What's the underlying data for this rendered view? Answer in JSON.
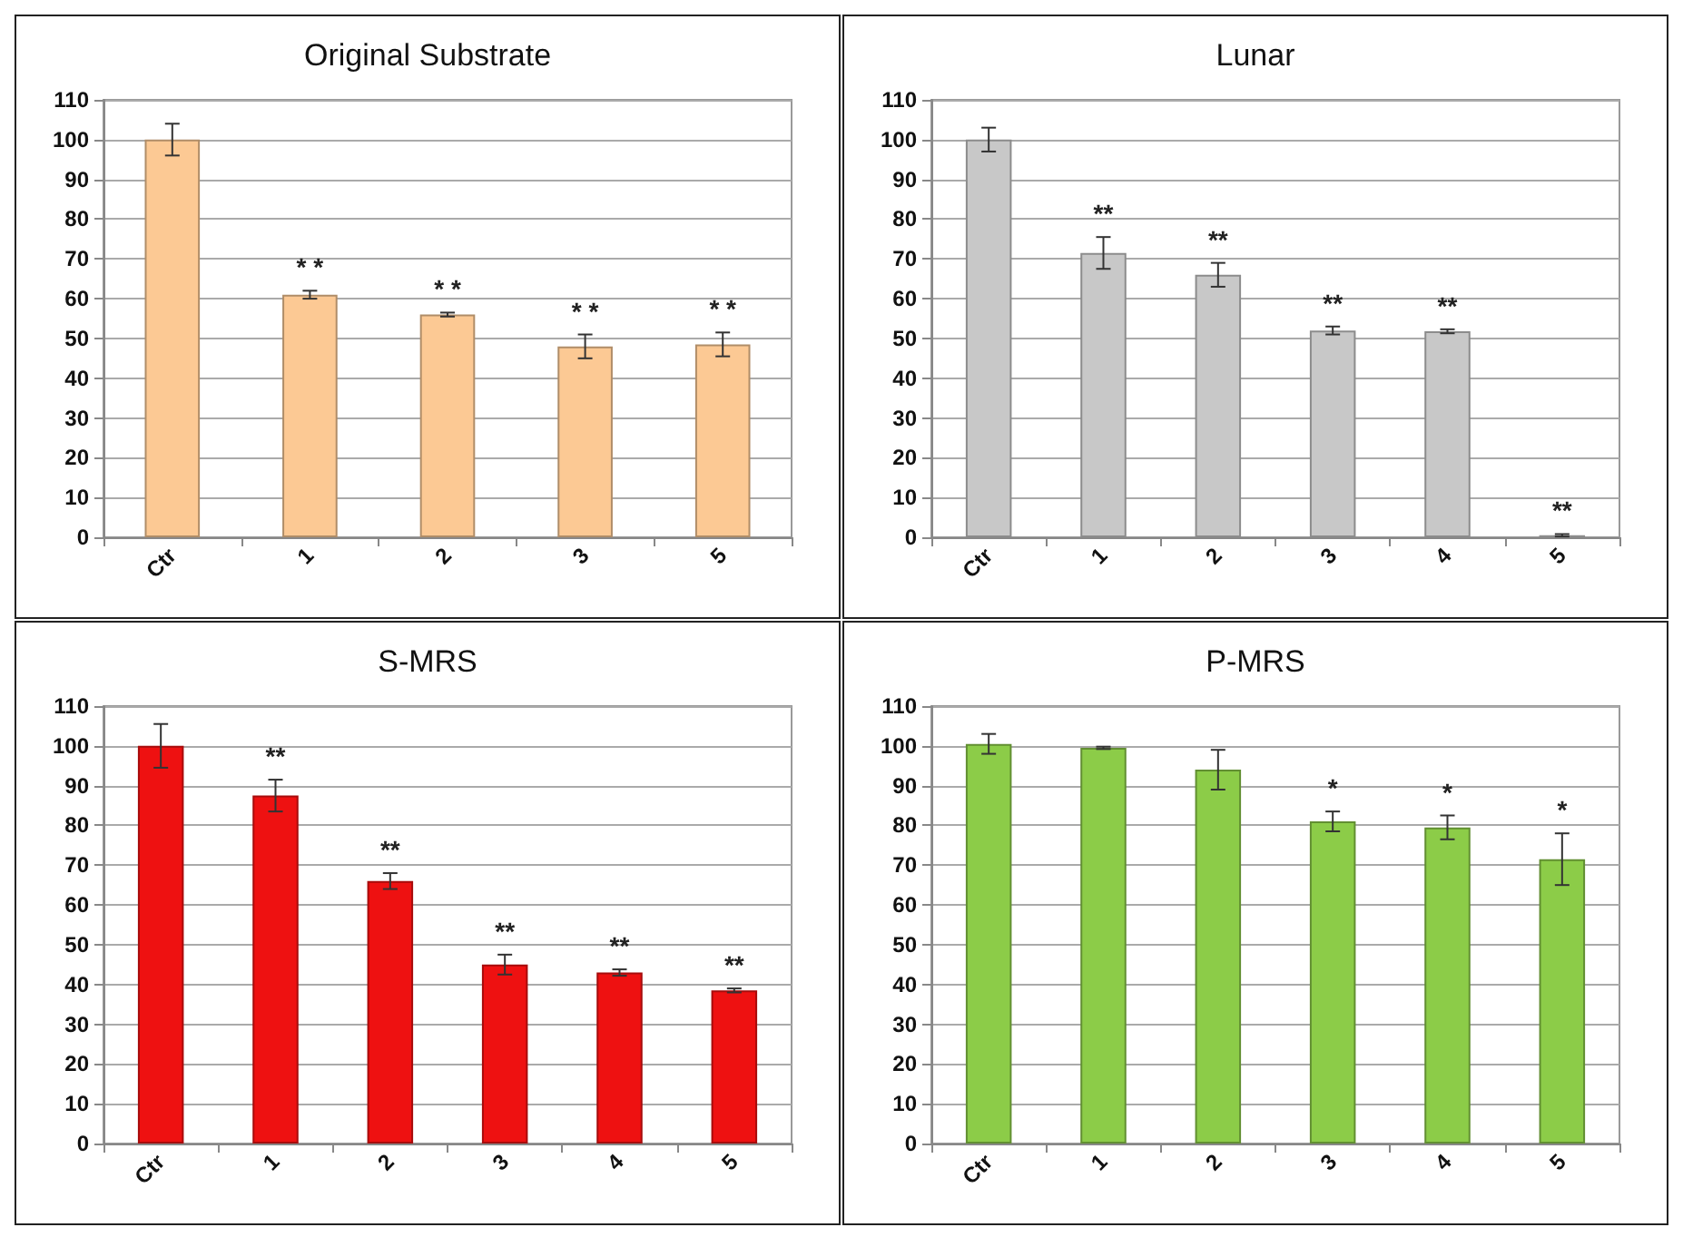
{
  "chart_data": [
    {
      "type": "bar",
      "title": "Original Substrate",
      "categories": [
        "Ctr",
        "1",
        "2",
        "3",
        "5"
      ],
      "values": [
        100,
        61,
        56,
        48,
        48.5
      ],
      "errors": [
        4,
        1,
        0.5,
        3,
        3
      ],
      "value_labels": [
        null,
        "* *",
        "* *",
        "* *",
        "* *"
      ],
      "color": "#fcc994",
      "ylim": [
        0,
        110
      ],
      "yticks": [
        0,
        10,
        20,
        30,
        40,
        50,
        60,
        70,
        80,
        90,
        100,
        110
      ],
      "grid": "y"
    },
    {
      "type": "bar",
      "title": "Lunar",
      "categories": [
        "Ctr",
        "1",
        "2",
        "3",
        "4",
        "5"
      ],
      "values": [
        100,
        71.5,
        66,
        52,
        51.8,
        0.5
      ],
      "errors": [
        3,
        4,
        3,
        1,
        0.5,
        0.3
      ],
      "value_labels": [
        null,
        "**",
        "**",
        "**",
        "**",
        "**"
      ],
      "color": "#c8c8c8",
      "ylim": [
        0,
        110
      ],
      "yticks": [
        0,
        10,
        20,
        30,
        40,
        50,
        60,
        70,
        80,
        90,
        100,
        110
      ],
      "grid": "y"
    },
    {
      "type": "bar",
      "title": "S-MRS",
      "categories": [
        "Ctr",
        "1",
        "2",
        "3",
        "4",
        "5"
      ],
      "values": [
        100,
        87.5,
        66,
        45,
        43,
        38.5
      ],
      "errors": [
        5.5,
        4,
        2,
        2.5,
        0.8,
        0.5
      ],
      "value_labels": [
        null,
        "**",
        "**",
        "**",
        "**",
        "**"
      ],
      "color": "#ee1111",
      "ylim": [
        0,
        110
      ],
      "yticks": [
        0,
        10,
        20,
        30,
        40,
        50,
        60,
        70,
        80,
        90,
        100,
        110
      ],
      "grid": "y"
    },
    {
      "type": "bar",
      "title": "P-MRS",
      "categories": [
        "Ctr",
        "1",
        "2",
        "3",
        "4",
        "5"
      ],
      "values": [
        100.5,
        99.5,
        94,
        81,
        79.5,
        71.5
      ],
      "errors": [
        2.5,
        0.3,
        5,
        2.5,
        3,
        6.5
      ],
      "value_labels": [
        null,
        null,
        null,
        "*",
        "*",
        "*"
      ],
      "color": "#8ccc48",
      "ylim": [
        0,
        110
      ],
      "yticks": [
        0,
        10,
        20,
        30,
        40,
        50,
        60,
        70,
        80,
        90,
        100,
        110
      ],
      "grid": "y"
    }
  ]
}
